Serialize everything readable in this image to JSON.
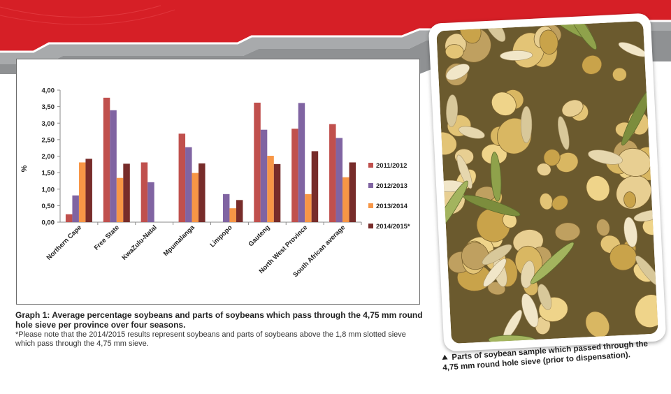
{
  "colors": {
    "banner_red": "#d61f26",
    "banner_grey": "#8f9193",
    "series_2011": "#c0504d",
    "series_2012": "#8064a2",
    "series_2013": "#f79646",
    "series_2014": "#772c2a"
  },
  "chart_data": {
    "type": "bar",
    "title": "",
    "xlabel": "",
    "ylabel": "%",
    "ylim": [
      0,
      4
    ],
    "y_ticks": [
      "0,00",
      "0,50",
      "1,00",
      "1,50",
      "2,00",
      "2,50",
      "3,00",
      "3,50",
      "4,00"
    ],
    "grid": false,
    "legend_position": "right",
    "categories": [
      "Northern Cape",
      "Free State",
      "KwaZulu-Natal",
      "Mpumalanga",
      "Limpopo",
      "Gauteng",
      "North West Province",
      "South African average"
    ],
    "series": [
      {
        "name": "2011/2012",
        "color": "#c0504d",
        "values": [
          0.24,
          3.77,
          1.81,
          2.68,
          null,
          3.62,
          2.83,
          2.97
        ]
      },
      {
        "name": "2012/2013",
        "color": "#8064a2",
        "values": [
          0.81,
          3.39,
          1.21,
          2.27,
          0.85,
          2.8,
          3.61,
          2.55
        ]
      },
      {
        "name": "2013/2014",
        "color": "#f79646",
        "values": [
          1.81,
          1.34,
          null,
          1.49,
          0.42,
          2.01,
          0.85,
          1.36
        ]
      },
      {
        "name": "2014/2015*",
        "color": "#772c2a",
        "values": [
          1.92,
          1.77,
          null,
          1.78,
          0.67,
          1.76,
          2.15,
          1.81
        ]
      }
    ]
  },
  "caption": {
    "title": "Graph 1: Average percentage soybeans and parts of soybeans which pass through the 4,75 mm round hole sieve per province over four seasons.",
    "note": "*Please note that the 2014/2015 results represent soybeans and parts of soybeans above the 1,8 mm slotted sieve which pass through the 4,75 mm sieve."
  },
  "photo": {
    "subject": "soybean-sample-photo",
    "caption": "Parts of soybean sample which passed through the 4,75 mm round hole sieve (prior to dispensation)."
  }
}
